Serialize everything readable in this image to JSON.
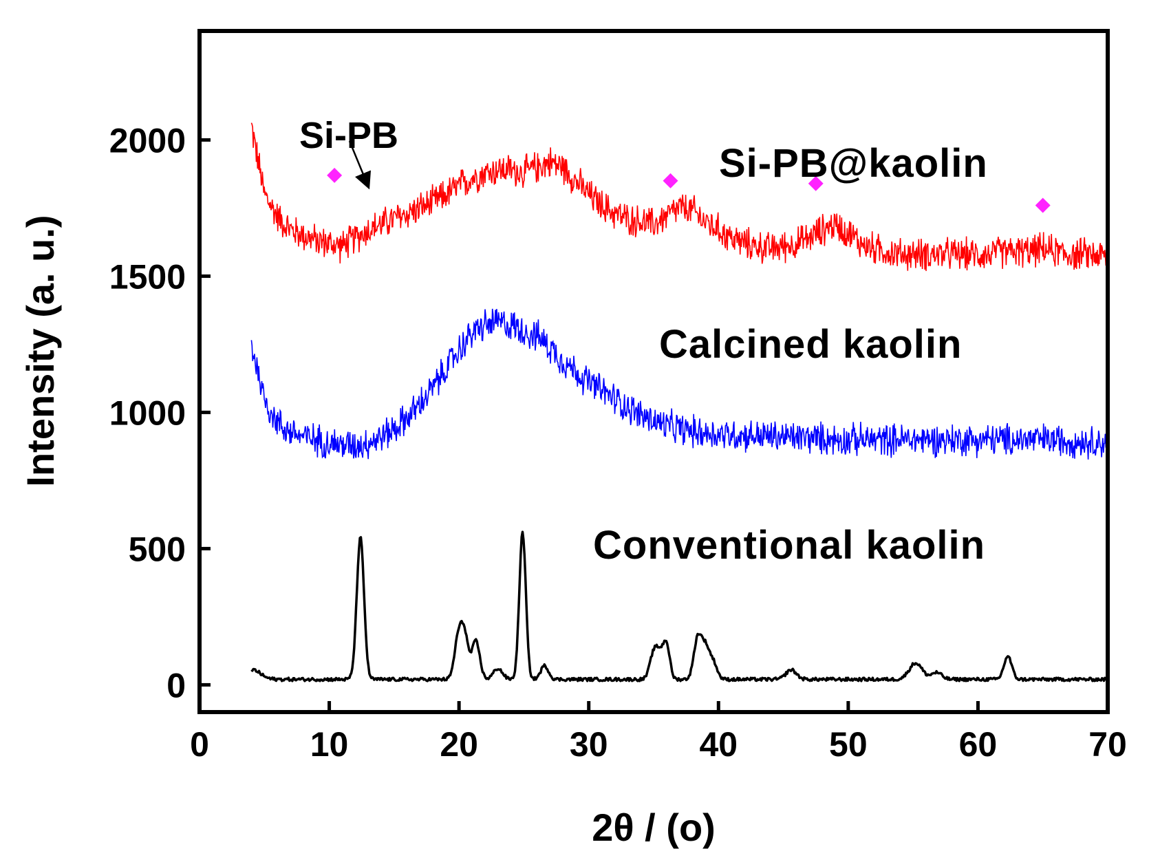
{
  "chart_data": {
    "type": "line",
    "title": "",
    "xlabel": "2θ / (o)",
    "ylabel": "Intensity (a. u.)",
    "xlim": [
      0,
      70
    ],
    "ylim": [
      -100,
      2400
    ],
    "x_ticks": [
      0,
      10,
      20,
      30,
      40,
      50,
      60,
      70
    ],
    "y_ticks": [
      0,
      500,
      1000,
      1500,
      2000
    ],
    "x_tick_labels": [
      "0",
      "10",
      "20",
      "30",
      "40",
      "50",
      "60",
      "70"
    ],
    "y_tick_labels": [
      "0",
      "500",
      "1000",
      "1500",
      "2000"
    ],
    "grid": false,
    "series": [
      {
        "name": "Si-PB@kaolin",
        "color": "#ff0000",
        "noise": 55,
        "points": [
          [
            4,
            2050
          ],
          [
            5,
            1800
          ],
          [
            6,
            1720
          ],
          [
            7,
            1670
          ],
          [
            8,
            1650
          ],
          [
            9,
            1630
          ],
          [
            10,
            1620
          ],
          [
            11,
            1610
          ],
          [
            12,
            1640
          ],
          [
            13,
            1670
          ],
          [
            14,
            1690
          ],
          [
            15,
            1710
          ],
          [
            16,
            1730
          ],
          [
            17,
            1750
          ],
          [
            18,
            1770
          ],
          [
            19,
            1800
          ],
          [
            20,
            1830
          ],
          [
            21,
            1860
          ],
          [
            22,
            1880
          ],
          [
            23,
            1890
          ],
          [
            24,
            1890
          ],
          [
            25,
            1880
          ],
          [
            26,
            1900
          ],
          [
            27,
            1920
          ],
          [
            28,
            1900
          ],
          [
            29,
            1850
          ],
          [
            30,
            1800
          ],
          [
            31,
            1760
          ],
          [
            32,
            1730
          ],
          [
            33,
            1710
          ],
          [
            34,
            1700
          ],
          [
            35,
            1690
          ],
          [
            36,
            1720
          ],
          [
            37,
            1750
          ],
          [
            38,
            1740
          ],
          [
            39,
            1700
          ],
          [
            40,
            1670
          ],
          [
            41,
            1640
          ],
          [
            42,
            1620
          ],
          [
            43,
            1610
          ],
          [
            44,
            1600
          ],
          [
            45,
            1610
          ],
          [
            46,
            1620
          ],
          [
            47,
            1640
          ],
          [
            48,
            1670
          ],
          [
            49,
            1690
          ],
          [
            50,
            1660
          ],
          [
            51,
            1620
          ],
          [
            52,
            1600
          ],
          [
            53,
            1590
          ],
          [
            54,
            1580
          ],
          [
            55,
            1580
          ],
          [
            56,
            1580
          ],
          [
            57,
            1580
          ],
          [
            58,
            1580
          ],
          [
            59,
            1580
          ],
          [
            60,
            1580
          ],
          [
            61,
            1580
          ],
          [
            62,
            1590
          ],
          [
            63,
            1590
          ],
          [
            64,
            1590
          ],
          [
            65,
            1600
          ],
          [
            66,
            1590
          ],
          [
            67,
            1580
          ],
          [
            68,
            1580
          ],
          [
            69,
            1580
          ],
          [
            70,
            1570
          ]
        ]
      },
      {
        "name": "Calcined kaolin",
        "color": "#0000ff",
        "noise": 55,
        "points": [
          [
            4,
            1250
          ],
          [
            5,
            1050
          ],
          [
            6,
            960
          ],
          [
            7,
            930
          ],
          [
            8,
            910
          ],
          [
            9,
            900
          ],
          [
            10,
            890
          ],
          [
            11,
            880
          ],
          [
            12,
            880
          ],
          [
            13,
            890
          ],
          [
            14,
            910
          ],
          [
            15,
            940
          ],
          [
            16,
            980
          ],
          [
            17,
            1030
          ],
          [
            18,
            1090
          ],
          [
            19,
            1160
          ],
          [
            20,
            1230
          ],
          [
            21,
            1290
          ],
          [
            22,
            1320
          ],
          [
            23,
            1330
          ],
          [
            24,
            1320
          ],
          [
            25,
            1300
          ],
          [
            26,
            1280
          ],
          [
            27,
            1240
          ],
          [
            28,
            1190
          ],
          [
            29,
            1150
          ],
          [
            30,
            1110
          ],
          [
            31,
            1080
          ],
          [
            32,
            1050
          ],
          [
            33,
            1020
          ],
          [
            34,
            990
          ],
          [
            35,
            970
          ],
          [
            36,
            950
          ],
          [
            37,
            940
          ],
          [
            38,
            930
          ],
          [
            39,
            925
          ],
          [
            40,
            920
          ],
          [
            45,
            910
          ],
          [
            50,
            900
          ],
          [
            55,
            900
          ],
          [
            60,
            900
          ],
          [
            65,
            900
          ],
          [
            70,
            890
          ]
        ]
      },
      {
        "name": "Conventional kaolin",
        "color": "#000000",
        "noise": 6,
        "baseline": 20,
        "start": 4,
        "end": 70,
        "peaks": [
          [
            4.1,
            35,
            0.6
          ],
          [
            12.4,
            520,
            0.28
          ],
          [
            19.9,
            130,
            0.28
          ],
          [
            20.4,
            170,
            0.3
          ],
          [
            21.3,
            140,
            0.3
          ],
          [
            23.0,
            40,
            0.35
          ],
          [
            24.9,
            540,
            0.25
          ],
          [
            26.6,
            50,
            0.3
          ],
          [
            35.0,
            90,
            0.3
          ],
          [
            35.5,
            80,
            0.3
          ],
          [
            36.0,
            120,
            0.25
          ],
          [
            38.4,
            150,
            0.3
          ],
          [
            39.0,
            110,
            0.3
          ],
          [
            39.6,
            60,
            0.3
          ],
          [
            45.6,
            35,
            0.4
          ],
          [
            55.2,
            60,
            0.5
          ],
          [
            56.8,
            25,
            0.4
          ],
          [
            62.3,
            85,
            0.3
          ]
        ]
      }
    ],
    "markers": [
      {
        "x": 10.4,
        "y": 1870,
        "color": "#ff22ff"
      },
      {
        "x": 36.3,
        "y": 1850,
        "color": "#ff22ff"
      },
      {
        "x": 47.5,
        "y": 1840,
        "color": "#ff22ff"
      },
      {
        "x": 65.0,
        "y": 1760,
        "color": "#ff22ff"
      }
    ],
    "annotations": {
      "sipb_label": "Si-PB",
      "sipb_arrow_to": {
        "x": 13.0,
        "y": 1830
      },
      "sipb_kaolin_label": "Si-PB@kaolin",
      "calcined_label": "Calcined kaolin",
      "conventional_label": "Conventional kaolin"
    }
  }
}
